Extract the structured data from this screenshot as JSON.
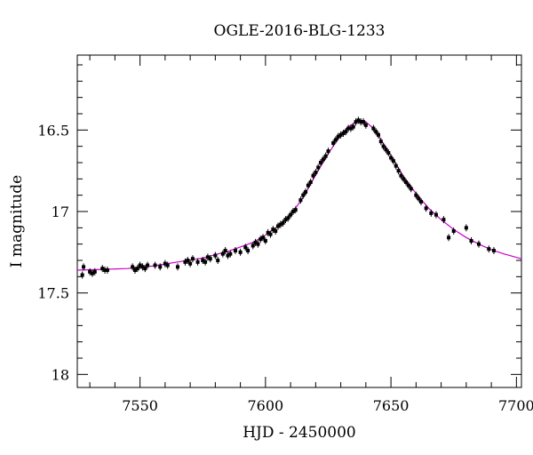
{
  "chart_data": {
    "type": "scatter",
    "title": "OGLE-2016-BLG-1233",
    "xlabel": "HJD - 2450000",
    "ylabel": "I magnitude",
    "xlim": [
      7525,
      7702
    ],
    "ylim": [
      18.08,
      16.04
    ],
    "y_inverted": true,
    "x_ticks": [
      7550,
      7600,
      7650,
      7700
    ],
    "x_tick_labels": [
      "7550",
      "7600",
      "7650",
      "7700"
    ],
    "y_ticks": [
      16.5,
      17,
      17.5,
      18
    ],
    "y_tick_labels": [
      "16.5",
      "17",
      "17.5",
      "18"
    ],
    "grid": false,
    "marker_color": "#000000",
    "model_color": "#cc00cc",
    "series": [
      {
        "kind": "points",
        "points": [
          [
            7527,
            17.39
          ],
          [
            7527.5,
            17.34
          ],
          [
            7530,
            17.37
          ],
          [
            7531,
            17.38
          ],
          [
            7532,
            17.37
          ],
          [
            7535,
            17.35
          ],
          [
            7536,
            17.36
          ],
          [
            7537,
            17.36
          ],
          [
            7547,
            17.34
          ],
          [
            7548,
            17.36
          ],
          [
            7549,
            17.35
          ],
          [
            7550,
            17.33
          ],
          [
            7551,
            17.34
          ],
          [
            7552,
            17.35
          ],
          [
            7553,
            17.33
          ],
          [
            7556,
            17.33
          ],
          [
            7558,
            17.34
          ],
          [
            7560,
            17.32
          ],
          [
            7561,
            17.33
          ],
          [
            7565,
            17.34
          ],
          [
            7568,
            17.31
          ],
          [
            7569,
            17.3
          ],
          [
            7570,
            17.32
          ],
          [
            7571,
            17.29
          ],
          [
            7573,
            17.31
          ],
          [
            7575,
            17.3
          ],
          [
            7576,
            17.31
          ],
          [
            7577,
            17.28
          ],
          [
            7578,
            17.29
          ],
          [
            7580,
            17.27
          ],
          [
            7581,
            17.3
          ],
          [
            7583,
            17.26
          ],
          [
            7584,
            17.24
          ],
          [
            7585,
            17.27
          ],
          [
            7586,
            17.26
          ],
          [
            7588,
            17.24
          ],
          [
            7590,
            17.25
          ],
          [
            7592,
            17.22
          ],
          [
            7593,
            17.24
          ],
          [
            7595,
            17.21
          ],
          [
            7596,
            17.19
          ],
          [
            7597,
            17.2
          ],
          [
            7598,
            17.17
          ],
          [
            7599,
            17.16
          ],
          [
            7600,
            17.18
          ],
          [
            7601,
            17.13
          ],
          [
            7602,
            17.14
          ],
          [
            7603,
            17.11
          ],
          [
            7604,
            17.12
          ],
          [
            7605,
            17.09
          ],
          [
            7606,
            17.08
          ],
          [
            7607,
            17.07
          ],
          [
            7608,
            17.05
          ],
          [
            7609,
            17.04
          ],
          [
            7610,
            17.02
          ],
          [
            7611,
            17.0
          ],
          [
            7612,
            16.99
          ],
          [
            7614,
            16.93
          ],
          [
            7615,
            16.9
          ],
          [
            7616,
            16.88
          ],
          [
            7617,
            16.84
          ],
          [
            7618,
            16.82
          ],
          [
            7619,
            16.78
          ],
          [
            7620,
            16.76
          ],
          [
            7621,
            16.73
          ],
          [
            7622,
            16.7
          ],
          [
            7623,
            16.68
          ],
          [
            7624,
            16.66
          ],
          [
            7625,
            16.63
          ],
          [
            7627,
            16.58
          ],
          [
            7628,
            16.56
          ],
          [
            7629,
            16.54
          ],
          [
            7630,
            16.53
          ],
          [
            7631,
            16.52
          ],
          [
            7632,
            16.51
          ],
          [
            7633,
            16.49
          ],
          [
            7634,
            16.49
          ],
          [
            7635,
            16.48
          ],
          [
            7636,
            16.45
          ],
          [
            7637,
            16.44
          ],
          [
            7638,
            16.45
          ],
          [
            7639,
            16.45
          ],
          [
            7640,
            16.47
          ],
          [
            7643,
            16.49
          ],
          [
            7644,
            16.51
          ],
          [
            7645,
            16.53
          ],
          [
            7646,
            16.57
          ],
          [
            7647,
            16.6
          ],
          [
            7648,
            16.62
          ],
          [
            7649,
            16.64
          ],
          [
            7650,
            16.67
          ],
          [
            7651,
            16.69
          ],
          [
            7652,
            16.72
          ],
          [
            7653,
            16.75
          ],
          [
            7654,
            16.78
          ],
          [
            7655,
            16.8
          ],
          [
            7656,
            16.82
          ],
          [
            7657,
            16.84
          ],
          [
            7658,
            16.86
          ],
          [
            7660,
            16.9
          ],
          [
            7661,
            16.92
          ],
          [
            7662,
            16.94
          ],
          [
            7664,
            16.98
          ],
          [
            7666,
            17.01
          ],
          [
            7668,
            17.02
          ],
          [
            7671,
            17.05
          ],
          [
            7673,
            17.16
          ],
          [
            7675,
            17.12
          ],
          [
            7680,
            17.1
          ],
          [
            7682,
            17.18
          ],
          [
            7685,
            17.2
          ],
          [
            7689,
            17.23
          ],
          [
            7691,
            17.24
          ]
        ]
      },
      {
        "kind": "model",
        "points": [
          [
            7525,
            17.36
          ],
          [
            7535,
            17.355
          ],
          [
            7545,
            17.35
          ],
          [
            7555,
            17.335
          ],
          [
            7565,
            17.31
          ],
          [
            7575,
            17.285
          ],
          [
            7585,
            17.245
          ],
          [
            7595,
            17.19
          ],
          [
            7600,
            17.145
          ],
          [
            7605,
            17.09
          ],
          [
            7610,
            17.02
          ],
          [
            7615,
            16.915
          ],
          [
            7620,
            16.775
          ],
          [
            7625,
            16.645
          ],
          [
            7630,
            16.53
          ],
          [
            7633,
            16.48
          ],
          [
            7636,
            16.45
          ],
          [
            7638,
            16.44
          ],
          [
            7640,
            16.45
          ],
          [
            7643,
            16.49
          ],
          [
            7646,
            16.56
          ],
          [
            7650,
            16.655
          ],
          [
            7655,
            16.785
          ],
          [
            7660,
            16.89
          ],
          [
            7665,
            16.98
          ],
          [
            7670,
            17.05
          ],
          [
            7675,
            17.11
          ],
          [
            7680,
            17.16
          ],
          [
            7685,
            17.2
          ],
          [
            7690,
            17.235
          ],
          [
            7695,
            17.26
          ],
          [
            7702,
            17.29
          ]
        ]
      }
    ]
  }
}
